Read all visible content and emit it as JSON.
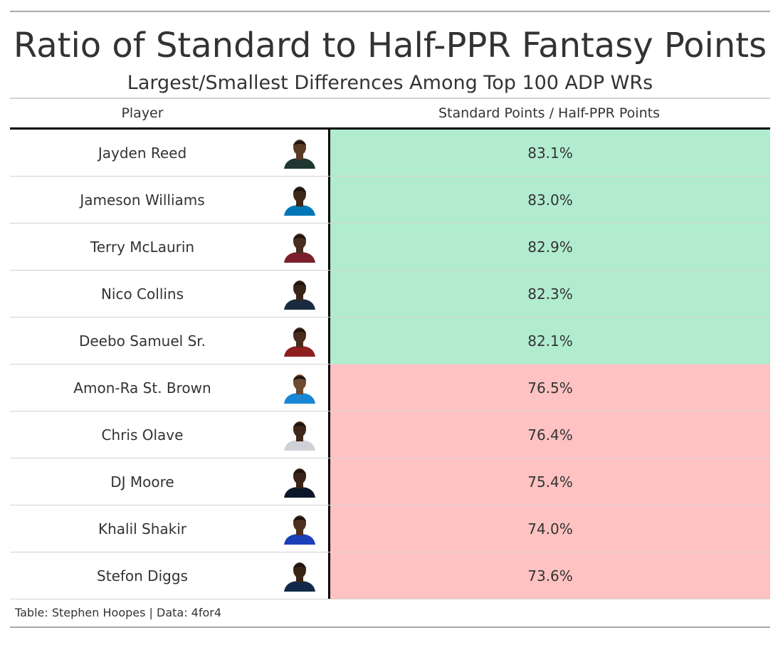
{
  "chart_data": {
    "type": "table",
    "title": "Ratio of Standard to Half-PPR Fantasy Points",
    "subtitle": "Largest/Smallest Differences Among Top 100 ADP WRs",
    "columns": [
      "Player",
      "Standard Points / Half-PPR Points"
    ],
    "rows": [
      {
        "player": "Jayden Reed",
        "ratio": "83.1%",
        "value": 83.1,
        "group": "largest",
        "fill": "#b2eccf",
        "jersey": "#203731",
        "skin": "#5b3a26"
      },
      {
        "player": "Jameson Williams",
        "ratio": "83.0%",
        "value": 83.0,
        "group": "largest",
        "fill": "#b2eccf",
        "jersey": "#0076b6",
        "skin": "#3e2818"
      },
      {
        "player": "Terry McLaurin",
        "ratio": "82.9%",
        "value": 82.9,
        "group": "largest",
        "fill": "#b2eccf",
        "jersey": "#7a1f2b",
        "skin": "#4a2d1c"
      },
      {
        "player": "Nico Collins",
        "ratio": "82.3%",
        "value": 82.3,
        "group": "largest",
        "fill": "#b2eccf",
        "jersey": "#1b2b3f",
        "skin": "#3a2417"
      },
      {
        "player": "Deebo Samuel Sr.",
        "ratio": "82.1%",
        "value": 82.1,
        "group": "largest",
        "fill": "#b2eccf",
        "jersey": "#8e1f1f",
        "skin": "#4a2c1a"
      },
      {
        "player": "Amon-Ra St. Brown",
        "ratio": "76.5%",
        "value": 76.5,
        "group": "smallest",
        "fill": "#ffc2c2",
        "jersey": "#1a86d6",
        "skin": "#6e4a33"
      },
      {
        "player": "Chris Olave",
        "ratio": "76.4%",
        "value": 76.4,
        "group": "smallest",
        "fill": "#ffc2c2",
        "jersey": "#cfd1d6",
        "skin": "#3f2819"
      },
      {
        "player": "DJ Moore",
        "ratio": "75.4%",
        "value": 75.4,
        "group": "smallest",
        "fill": "#ffc2c2",
        "jersey": "#0b162a",
        "skin": "#3a2316"
      },
      {
        "player": "Khalil Shakir",
        "ratio": "74.0%",
        "value": 74.0,
        "group": "smallest",
        "fill": "#ffc2c2",
        "jersey": "#1b3fb8",
        "skin": "#4d301e"
      },
      {
        "player": "Stefon Diggs",
        "ratio": "73.6%",
        "value": 73.6,
        "group": "smallest",
        "fill": "#ffc2c2",
        "jersey": "#13294b",
        "skin": "#3b2416"
      }
    ],
    "source": "Table: Stephen Hoopes | Data: 4for4"
  }
}
